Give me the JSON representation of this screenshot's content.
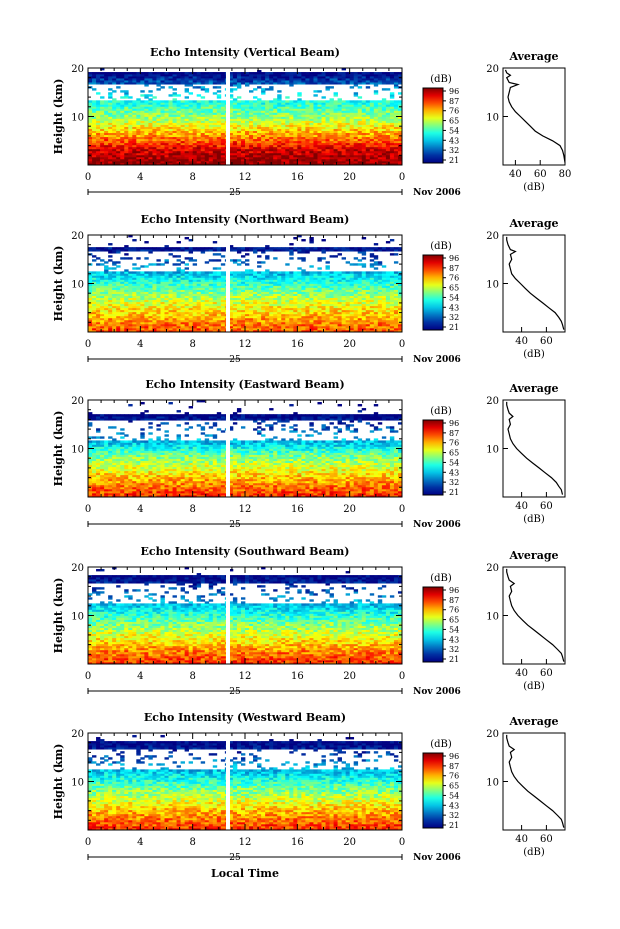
{
  "figure": {
    "xlabel": "Local Time",
    "date_label": "Nov 2006",
    "day_label": "25",
    "colorbar_unit": "(dB)",
    "colorbar_ticks": [
      "96",
      "87",
      "76",
      "65",
      "54",
      "43",
      "32",
      "21"
    ],
    "profile_title": "Average",
    "profile_xlabel": "(dB)"
  },
  "chart_data": [
    {
      "type": "heatmap",
      "title": "Echo Intensity (Vertical Beam)",
      "ylabel": "Height (km)",
      "xlabel": "",
      "x_ticks": [
        "0",
        "4",
        "8",
        "12",
        "16",
        "20",
        "0"
      ],
      "y_ticks": [
        "20",
        "10"
      ],
      "xlim": [
        0,
        24
      ],
      "ylim": [
        0,
        20
      ],
      "gap_hour": 10.7,
      "colorbar_range": [
        21,
        96
      ],
      "echo_top_km": 19,
      "clear_band_km": [
        13.5,
        16.5
      ],
      "color_stops": [
        [
          0,
          96
        ],
        [
          3,
          90
        ],
        [
          6,
          76
        ],
        [
          10,
          60
        ],
        [
          14,
          48
        ],
        [
          17,
          32
        ],
        [
          19,
          21
        ]
      ],
      "profile": {
        "title": "Average",
        "xlabel": "(dB)",
        "x_ticks": [
          "40",
          "60",
          "80"
        ],
        "y_ticks": [
          "20",
          "10"
        ],
        "xlim": [
          30,
          80
        ],
        "points": [
          [
            80,
            0.5
          ],
          [
            79,
            2
          ],
          [
            78,
            3
          ],
          [
            76,
            4
          ],
          [
            70,
            5
          ],
          [
            62,
            6
          ],
          [
            56,
            7
          ],
          [
            52,
            8
          ],
          [
            48,
            9
          ],
          [
            44,
            10
          ],
          [
            40,
            11
          ],
          [
            37,
            12
          ],
          [
            35,
            13
          ],
          [
            34,
            14
          ],
          [
            35,
            15
          ],
          [
            36,
            16
          ],
          [
            42,
            16.6
          ],
          [
            35,
            17
          ],
          [
            33,
            18
          ],
          [
            36,
            18.5
          ],
          [
            33,
            19
          ],
          [
            32,
            19.6
          ]
        ]
      }
    },
    {
      "type": "heatmap",
      "title": "Echo Intensity (Northward Beam)",
      "ylabel": "Height (km)",
      "xlabel": "",
      "x_ticks": [
        "0",
        "4",
        "8",
        "12",
        "16",
        "20",
        "0"
      ],
      "y_ticks": [
        "20",
        "10"
      ],
      "xlim": [
        0,
        24
      ],
      "ylim": [
        0,
        20
      ],
      "gap_hour": 10.7,
      "colorbar_range": [
        21,
        96
      ],
      "echo_top_km": 17.5,
      "clear_band_km": [
        12.5,
        16.5
      ],
      "color_stops": [
        [
          0,
          82
        ],
        [
          3,
          74
        ],
        [
          6,
          66
        ],
        [
          9,
          56
        ],
        [
          12,
          44
        ],
        [
          15,
          32
        ],
        [
          18,
          21
        ]
      ],
      "profile": {
        "title": "Average",
        "xlabel": "(dB)",
        "x_ticks": [
          "40",
          "60"
        ],
        "y_ticks": [
          "20",
          "10"
        ],
        "xlim": [
          25,
          75
        ],
        "points": [
          [
            74,
            0.5
          ],
          [
            73,
            1.5
          ],
          [
            72,
            2.2
          ],
          [
            70,
            3
          ],
          [
            67,
            4
          ],
          [
            62,
            5
          ],
          [
            57,
            6
          ],
          [
            52,
            7
          ],
          [
            47,
            8
          ],
          [
            43,
            9
          ],
          [
            39,
            10
          ],
          [
            35,
            11
          ],
          [
            32,
            12
          ],
          [
            31,
            13
          ],
          [
            30,
            14
          ],
          [
            32,
            15
          ],
          [
            31,
            16
          ],
          [
            35,
            16.6
          ],
          [
            31,
            17
          ],
          [
            29,
            18
          ],
          [
            28,
            19
          ],
          [
            28,
            19.6
          ]
        ]
      }
    },
    {
      "type": "heatmap",
      "title": "Echo Intensity (Eastward Beam)",
      "ylabel": "Height (km)",
      "xlabel": "",
      "x_ticks": [
        "0",
        "4",
        "8",
        "12",
        "16",
        "20",
        "0"
      ],
      "y_ticks": [
        "20",
        "10"
      ],
      "xlim": [
        0,
        24
      ],
      "ylim": [
        0,
        20
      ],
      "gap_hour": 10.7,
      "colorbar_range": [
        21,
        96
      ],
      "echo_top_km": 17,
      "clear_band_km": [
        11.5,
        16
      ],
      "color_stops": [
        [
          0,
          84
        ],
        [
          3,
          76
        ],
        [
          6,
          66
        ],
        [
          9,
          56
        ],
        [
          11,
          44
        ],
        [
          14,
          32
        ],
        [
          17,
          21
        ]
      ],
      "profile": {
        "title": "Average",
        "xlabel": "(dB)",
        "x_ticks": [
          "40",
          "60"
        ],
        "y_ticks": [
          "20",
          "10"
        ],
        "xlim": [
          25,
          75
        ],
        "points": [
          [
            73,
            0.5
          ],
          [
            72,
            1.5
          ],
          [
            70,
            2.2
          ],
          [
            68,
            3
          ],
          [
            64,
            4
          ],
          [
            59,
            5
          ],
          [
            54,
            6
          ],
          [
            49,
            7
          ],
          [
            44,
            8
          ],
          [
            40,
            9
          ],
          [
            36,
            10
          ],
          [
            33,
            11
          ],
          [
            31,
            12
          ],
          [
            30,
            13
          ],
          [
            29,
            14
          ],
          [
            31,
            15
          ],
          [
            30,
            16
          ],
          [
            33,
            16.6
          ],
          [
            30,
            17.3
          ],
          [
            29,
            18
          ],
          [
            28,
            19
          ],
          [
            28,
            19.6
          ]
        ]
      }
    },
    {
      "type": "heatmap",
      "title": "Echo Intensity (Southward Beam)",
      "ylabel": "Height (km)",
      "xlabel": "",
      "x_ticks": [
        "0",
        "4",
        "8",
        "12",
        "16",
        "20",
        "0"
      ],
      "y_ticks": [
        "20",
        "10"
      ],
      "xlim": [
        0,
        24
      ],
      "ylim": [
        0,
        20
      ],
      "gap_hour": 10.7,
      "colorbar_range": [
        21,
        96
      ],
      "echo_top_km": 18.5,
      "clear_band_km": [
        12.5,
        16.5
      ],
      "color_stops": [
        [
          0,
          84
        ],
        [
          3,
          76
        ],
        [
          6,
          66
        ],
        [
          9,
          56
        ],
        [
          12,
          44
        ],
        [
          15,
          32
        ],
        [
          18,
          21
        ]
      ],
      "profile": {
        "title": "Average",
        "xlabel": "(dB)",
        "x_ticks": [
          "40",
          "60"
        ],
        "y_ticks": [
          "20",
          "10"
        ],
        "xlim": [
          25,
          75
        ],
        "points": [
          [
            74,
            0.5
          ],
          [
            73,
            1.5
          ],
          [
            72,
            2.2
          ],
          [
            69,
            3
          ],
          [
            65,
            4
          ],
          [
            60,
            5
          ],
          [
            55,
            6
          ],
          [
            50,
            7
          ],
          [
            45,
            8
          ],
          [
            41,
            9
          ],
          [
            37,
            10
          ],
          [
            34,
            11
          ],
          [
            32,
            12
          ],
          [
            31,
            13
          ],
          [
            30,
            14
          ],
          [
            32,
            15
          ],
          [
            31,
            16
          ],
          [
            34,
            16.6
          ],
          [
            30,
            17.3
          ],
          [
            29,
            18
          ],
          [
            28,
            19
          ],
          [
            28,
            19.6
          ]
        ]
      }
    },
    {
      "type": "heatmap",
      "title": "Echo Intensity (Westward Beam)",
      "ylabel": "Height (km)",
      "xlabel": "Local Time",
      "x_ticks": [
        "0",
        "4",
        "8",
        "12",
        "16",
        "20",
        "0"
      ],
      "y_ticks": [
        "20",
        "10"
      ],
      "xlim": [
        0,
        24
      ],
      "ylim": [
        0,
        20
      ],
      "gap_hour": 10.7,
      "colorbar_range": [
        21,
        96
      ],
      "echo_top_km": 18.5,
      "clear_band_km": [
        12.5,
        16.5
      ],
      "color_stops": [
        [
          0,
          84
        ],
        [
          3,
          76
        ],
        [
          6,
          66
        ],
        [
          9,
          56
        ],
        [
          12,
          44
        ],
        [
          15,
          32
        ],
        [
          18,
          21
        ]
      ],
      "profile": {
        "title": "Average",
        "xlabel": "(dB)",
        "x_ticks": [
          "40",
          "60"
        ],
        "y_ticks": [
          "20",
          "10"
        ],
        "xlim": [
          25,
          75
        ],
        "points": [
          [
            74,
            0.5
          ],
          [
            73,
            1.5
          ],
          [
            72,
            2.2
          ],
          [
            69,
            3
          ],
          [
            65,
            4
          ],
          [
            60,
            5
          ],
          [
            55,
            6
          ],
          [
            50,
            7
          ],
          [
            45,
            8
          ],
          [
            41,
            9
          ],
          [
            37,
            10
          ],
          [
            34,
            11
          ],
          [
            32,
            12
          ],
          [
            31,
            13
          ],
          [
            30,
            14
          ],
          [
            32,
            15
          ],
          [
            31,
            16
          ],
          [
            34,
            16.6
          ],
          [
            30,
            17.3
          ],
          [
            29,
            18
          ],
          [
            28,
            19
          ],
          [
            28,
            19.6
          ]
        ]
      }
    }
  ]
}
